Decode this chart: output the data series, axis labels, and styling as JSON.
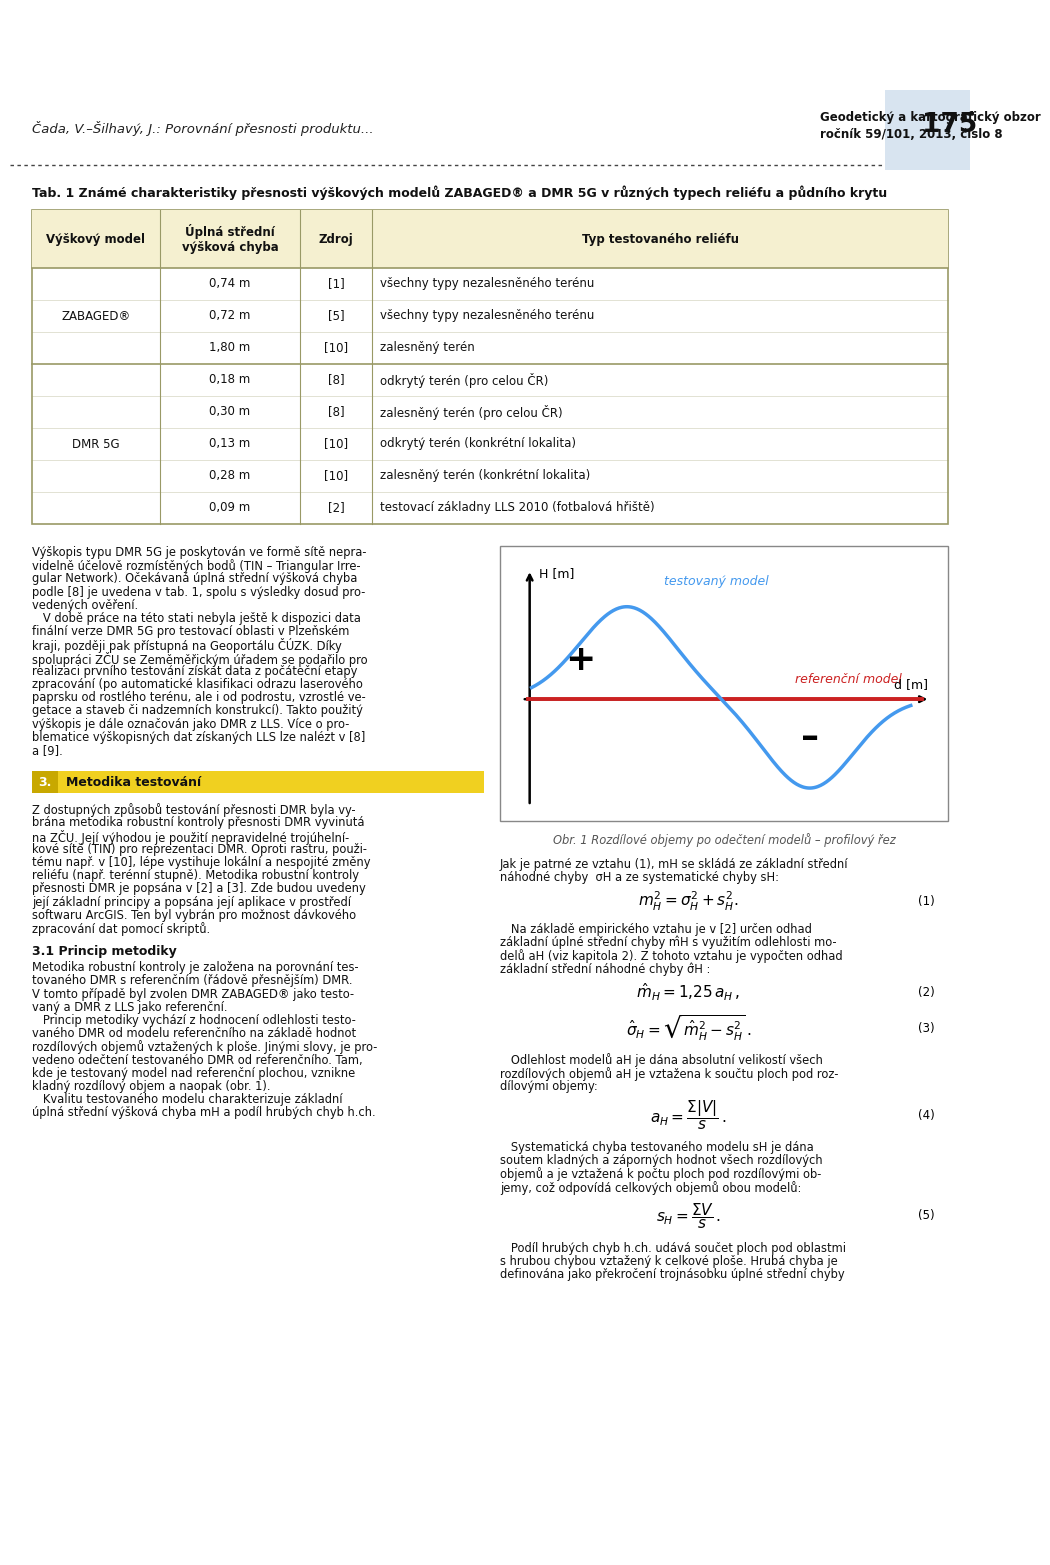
{
  "page_bg": "#ffffff",
  "header_left": "Čada, V.–Šilhavý, J.: Porovnání přesnosti produktu...",
  "header_right_line1": "Geodetický a kartografický obzor",
  "header_right_line2": "ročník 59/101, 2013, číslo 8",
  "header_page_num": "175",
  "header_right_bg": "#d8e4f0",
  "tab_title": "Tab. 1 Známé charakteristiky přesnosti výškových modelů ZABAGED® a DMR 5G v různých typech reliéfu a půdního krytu",
  "table_header_bg": "#f5f0d0",
  "table_border_color": "#999966",
  "col_headers": [
    "Výškový model",
    "Úplná střední\nvýšková chyba",
    "Zdroj",
    "Typ testovaného reliéfu"
  ],
  "zabaged_rows": [
    [
      "0,74 m",
      "[1]",
      "všechny typy nezalesněného terénu"
    ],
    [
      "0,72 m",
      "[5]",
      "všechny typy nezalesněného terénu"
    ],
    [
      "1,80 m",
      "[10]",
      "zalesněný terén"
    ]
  ],
  "dmr_rows": [
    [
      "0,18 m",
      "[8]",
      "odkrytý terén (pro celou ČR)"
    ],
    [
      "0,30 m",
      "[8]",
      "zalesněný terén (pro celou ČR)"
    ],
    [
      "0,13 m",
      "[10]",
      "odkrytý terén (konkrétní lokalita)"
    ],
    [
      "0,28 m",
      "[10]",
      "zalesněný terén (konkrétní lokalita)"
    ],
    [
      "0,09 m",
      "[2]",
      "testovací základny LLS 2010 (fotbalová hřiště)"
    ]
  ],
  "left_para1_lines": [
    "Výškopis typu DMR 5G je poskytován ve formě sítě nepra-",
    "videlně účelově rozmístěných bodů (TIN – Triangular Irre-",
    "gular Network). Očekávaná úplná střední výšková chyba",
    "podle [8] je uvedena v tab. 1, spolu s výsledky dosud pro-",
    "vedených ověření.",
    "   V době práce na této stati nebyla ještě k dispozici data",
    "finální verze DMR 5G pro testovací oblasti v Plzeňském",
    "kraji, později pak přístupná na Geoportálu ČÚZK. Díky",
    "spolupráci ZČU se Zeměměřickým úřadem se podařilo pro",
    "realizaci prvního testování získat data z počáteční etapy",
    "zpracování (po automatické klasifikaci odrazu laserového",
    "paprsku od rostlého terénu, ale i od podrostu, vzrostlé ve-",
    "getace a staveb či nadzemních konstrukcí). Takto použitý",
    "výškopis je dále označován jako DMR z LLS. Více o pro-",
    "blematice výškopisných dat získaných LLS lze nalézt v [8]",
    "a [9]."
  ],
  "left_para1_bold": [
    "finální verze",
    "DMR z LLS"
  ],
  "section3_title": "Metodika testování",
  "section3_num": "3.",
  "section3_bg": "#f0d020",
  "section3_num_bg": "#c8a800",
  "left_para2_lines": [
    "Z dostupných způsobů testování přesnosti DMR byla vy-",
    "brána metodika robustní kontroly přesnosti DMR vyvinutá",
    "na ZČU. Její výhodou je použití nepravidelné trojúhelní-",
    "kové sítě (TIN) pro reprezentaci DMR. Oproti rastru, použi-",
    "tému např. v [10], lépe vystihuje lokální a nespojité změny",
    "reliéfu (např. terénní stupně). Metodika robustní kontroly",
    "přesnosti DMR je popsána v [2] a [3]. Zde budou uvedeny",
    "její základní principy a popsána její aplikace v prostředí",
    "softwaru ArcGIS. Ten byl vybrán pro možnost dávkového",
    "zpracování dat pomocí skriptů."
  ],
  "section31_title": "3.1 Princip metodiky",
  "left_para3_lines": [
    "Metodika robustní kontroly je založena na porovnání tes-",
    "tovaného DMR s referenčním (řádově přesnějším) DMR.",
    "V tomto případě byl zvolen DMR ZABAGED® jako testo-",
    "vaný a DMR z LLS jako referenční.",
    "   Princip metodiky vychází z hodnocení odlehlosti testo-",
    "vaného DMR od modelu referenčního na základě hodnot",
    "rozdílových objemů vztažených k ploše. Jinými slovy, je pro-",
    "vedeno odečtení testovaného DMR od referenčního. Tam,",
    "kde je testovaný model nad referenční plochou, vznikne",
    "kladný rozdílový objem a naopak (obr. 1).",
    "   Kvalitu testovaného modelu charakterizuje základní",
    "úplná střední výšková chyba mH a podíl hrubých chyb h.ch."
  ],
  "right_text1_lines": [
    "Jak je patrné ze vztahu (1), mH se skládá ze základní střední",
    "náhodné chyby  σH a ze systematické chyby sH:"
  ],
  "right_text2_lines": [
    "   Na základě empirického vztahu je v [2] určen odhad",
    "základní úplné střední chyby m̂H s využitím odlehlosti mo-",
    "delů aH (viz kapitola 2). Z tohoto vztahu je vypočten odhad",
    "základní střední náhodné chyby σ̂H :"
  ],
  "right_text3_lines": [
    "   Odlehlost modelů aH je dána absolutní velikostí všech",
    "rozdílových objemů aH je vztažena k součtu ploch pod roz-",
    "dílovými objemy:"
  ],
  "right_text4_lines": [
    "   Systematická chyba testovaného modelu sH je dána",
    "soutem kladných a záporných hodnot všech rozdílových",
    "objemů a je vztažená k počtu ploch pod rozdílovými ob-",
    "jemy, což odpovídá celkových objemů obou modelů:"
  ],
  "right_text5_lines": [
    "   Podíl hrubých chyb h.ch. udává součet ploch pod oblastmi",
    "s hrubou chybou vztažený k celkové ploše. Hrubá chyba je",
    "definována jako překročení trojnásobku úplné střední chyby"
  ],
  "fig_caption": "Obr. 1 Rozdílové objemy po odečtení modelů – profilový řez",
  "fig_tested_label": "testovaný model",
  "fig_ref_label": "referenční model",
  "fig_x_label": "d [m]",
  "fig_y_label": "H [m]",
  "fig_blue": "#4499ee",
  "fig_red": "#cc2222"
}
